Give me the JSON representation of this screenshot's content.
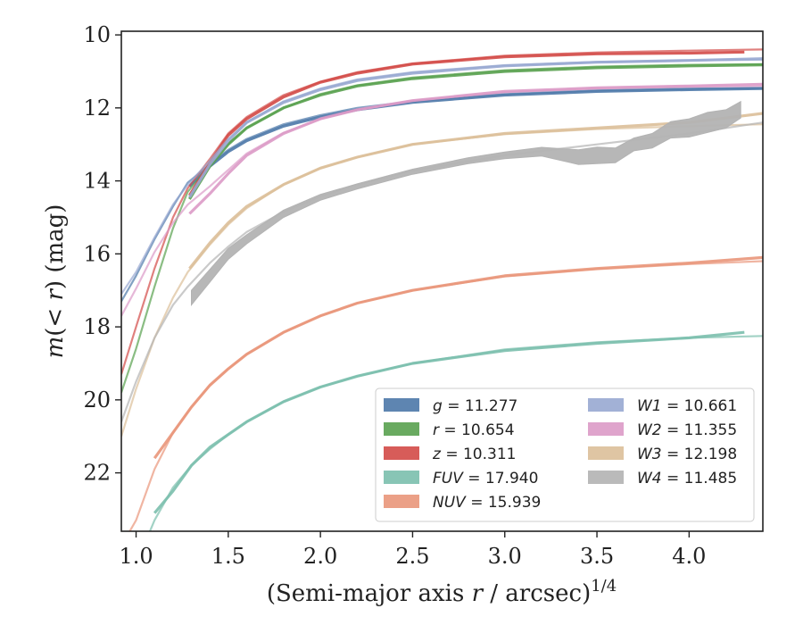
{
  "chart_data": {
    "type": "line",
    "title": "",
    "xlabel": "(Semi-major axis r / arcsec)",
    "xlabel_var": "r",
    "xlabel_prefix": "(Semi-major axis ",
    "xlabel_suffix": " / arcsec)",
    "xlabel_exponent": "1/4",
    "ylabel_prefix": "m(< ",
    "ylabel_var": "r",
    "ylabel_suffix": ") (mag)",
    "xlim": [
      0.92,
      4.4
    ],
    "ylim": [
      23.6,
      9.9
    ],
    "y_inverted": true,
    "xticks": [
      1.0,
      1.5,
      2.0,
      2.5,
      3.0,
      3.5,
      4.0
    ],
    "xtick_labels": [
      "1.0",
      "1.5",
      "2.0",
      "2.5",
      "3.0",
      "3.5",
      "4.0"
    ],
    "yticks": [
      10,
      12,
      14,
      16,
      18,
      20,
      22
    ],
    "ytick_labels": [
      "10",
      "12",
      "14",
      "16",
      "18",
      "20",
      "22"
    ],
    "legend_placement": "lower-right",
    "grid": false,
    "series": [
      {
        "name": "g = 11.277",
        "band": "g",
        "value": "11.277",
        "color": "#4c78a8",
        "data_x": [
          1.29,
          1.4,
          1.5,
          1.6,
          1.8,
          2.0,
          2.2,
          2.5,
          3.0,
          3.5,
          4.0,
          4.4
        ],
        "data_y": [
          14.15,
          13.6,
          13.2,
          12.9,
          12.5,
          12.25,
          12.05,
          11.85,
          11.65,
          11.55,
          11.5,
          11.47
        ],
        "model_x": [
          0.92,
          1.0,
          1.1,
          1.2,
          1.28,
          1.4,
          1.5,
          1.6,
          1.8,
          2.0,
          2.2,
          2.5,
          3.0,
          3.5,
          4.0,
          4.4
        ],
        "model_y": [
          17.3,
          16.6,
          15.6,
          14.7,
          14.05,
          13.55,
          13.15,
          12.85,
          12.45,
          12.2,
          12.0,
          11.82,
          11.62,
          11.52,
          11.47,
          11.45
        ]
      },
      {
        "name": "r = 10.654",
        "band": "r",
        "value": "10.654",
        "color": "#59a14f",
        "data_x": [
          1.29,
          1.4,
          1.5,
          1.6,
          1.8,
          2.0,
          2.2,
          2.5,
          3.0,
          3.5,
          4.0,
          4.4
        ],
        "data_y": [
          14.5,
          13.6,
          13.0,
          12.55,
          12.0,
          11.65,
          11.4,
          11.2,
          11.0,
          10.9,
          10.85,
          10.82
        ],
        "model_x": [
          0.92,
          1.0,
          1.1,
          1.2,
          1.28,
          1.4,
          1.5,
          1.6,
          1.8,
          2.0,
          2.2,
          2.5,
          3.0,
          3.5,
          4.0,
          4.4
        ],
        "model_y": [
          19.8,
          18.6,
          16.9,
          15.3,
          14.3,
          13.55,
          12.98,
          12.55,
          12.0,
          11.62,
          11.38,
          11.17,
          10.97,
          10.87,
          10.82,
          10.8
        ]
      },
      {
        "name": "z = 10.311",
        "band": "z",
        "value": "10.311",
        "color": "#d34a47",
        "data_x": [
          1.29,
          1.4,
          1.5,
          1.6,
          1.8,
          2.0,
          2.2,
          2.5,
          3.0,
          3.5,
          4.0,
          4.3
        ],
        "data_y": [
          14.4,
          13.5,
          12.75,
          12.3,
          11.7,
          11.3,
          11.05,
          10.8,
          10.6,
          10.52,
          10.5,
          10.47
        ],
        "model_x": [
          0.92,
          1.0,
          1.1,
          1.2,
          1.28,
          1.4,
          1.5,
          1.6,
          1.8,
          2.0,
          2.2,
          2.5,
          3.0,
          3.5,
          4.0,
          4.4
        ],
        "model_y": [
          19.3,
          18.0,
          16.4,
          15.0,
          14.2,
          13.4,
          12.7,
          12.25,
          11.65,
          11.28,
          11.02,
          10.78,
          10.57,
          10.48,
          10.43,
          10.4
        ]
      },
      {
        "name": "FUV = 17.940",
        "band": "FUV",
        "value": "17.940",
        "color": "#7bbfad",
        "data_x": [
          1.1,
          1.2,
          1.3,
          1.4,
          1.5,
          1.6,
          1.8,
          2.0,
          2.2,
          2.5,
          3.0,
          3.5,
          4.0,
          4.3
        ],
        "data_y": [
          23.1,
          22.5,
          21.8,
          21.3,
          20.95,
          20.6,
          20.05,
          19.65,
          19.35,
          19.0,
          18.65,
          18.45,
          18.3,
          18.15
        ],
        "model_x": [
          0.92,
          1.0,
          1.1,
          1.2,
          1.3,
          1.4,
          1.5,
          1.6,
          1.8,
          2.0,
          2.2,
          2.5,
          3.0,
          3.5,
          4.0,
          4.4
        ],
        "model_y": [
          25.2,
          24.5,
          23.3,
          22.4,
          21.8,
          21.35,
          20.95,
          20.6,
          20.05,
          19.65,
          19.35,
          19.0,
          18.62,
          18.42,
          18.3,
          18.25
        ]
      },
      {
        "name": "NUV = 15.939",
        "band": "NUV",
        "value": "15.939",
        "color": "#e9967a",
        "data_x": [
          1.1,
          1.2,
          1.3,
          1.4,
          1.5,
          1.6,
          1.8,
          2.0,
          2.2,
          2.5,
          3.0,
          3.5,
          4.0,
          4.4
        ],
        "data_y": [
          21.6,
          20.9,
          20.2,
          19.6,
          19.15,
          18.75,
          18.15,
          17.7,
          17.35,
          17.0,
          16.6,
          16.4,
          16.25,
          16.1
        ],
        "model_x": [
          0.92,
          1.0,
          1.1,
          1.2,
          1.3,
          1.4,
          1.5,
          1.6,
          1.8,
          2.0,
          2.2,
          2.5,
          3.0,
          3.5,
          4.0,
          4.4
        ],
        "model_y": [
          24.0,
          23.3,
          21.9,
          20.9,
          20.2,
          19.6,
          19.15,
          18.75,
          18.15,
          17.7,
          17.35,
          17.0,
          16.62,
          16.42,
          16.28,
          16.2
        ]
      },
      {
        "name": "W1 = 10.661",
        "band": "W1",
        "value": "10.661",
        "color": "#98a8d2",
        "data_x": [
          1.29,
          1.4,
          1.5,
          1.6,
          1.8,
          2.0,
          2.2,
          2.5,
          3.0,
          3.5,
          4.0,
          4.4
        ],
        "data_y": [
          14.45,
          13.55,
          12.9,
          12.4,
          11.85,
          11.5,
          11.25,
          11.05,
          10.85,
          10.75,
          10.7,
          10.65
        ],
        "model_x": [
          0.92,
          1.0,
          1.1,
          1.2,
          1.28,
          1.4,
          1.5,
          1.6,
          1.8,
          2.0,
          2.2,
          2.5,
          3.0,
          3.5,
          4.0,
          4.4
        ],
        "model_y": [
          17.1,
          16.5,
          15.55,
          14.65,
          14.1,
          13.45,
          12.85,
          12.4,
          11.82,
          11.47,
          11.22,
          11.02,
          10.83,
          10.74,
          10.7,
          10.68
        ]
      },
      {
        "name": "W2 = 11.355",
        "band": "W2",
        "value": "11.355",
        "color": "#dc9ac7",
        "data_x": [
          1.29,
          1.4,
          1.5,
          1.6,
          1.8,
          2.0,
          2.2,
          2.5,
          3.0,
          3.5,
          4.0,
          4.4
        ],
        "data_y": [
          14.9,
          14.35,
          13.8,
          13.3,
          12.7,
          12.3,
          12.05,
          11.8,
          11.55,
          11.45,
          11.4,
          11.35
        ],
        "model_x": [
          0.92,
          1.0,
          1.1,
          1.2,
          1.28,
          1.4,
          1.5,
          1.6,
          1.8,
          2.0,
          2.2,
          2.5,
          3.0,
          3.5,
          4.0,
          4.4
        ],
        "model_y": [
          17.7,
          16.95,
          15.95,
          15.15,
          14.65,
          14.15,
          13.7,
          13.25,
          12.68,
          12.3,
          12.05,
          11.8,
          11.57,
          11.47,
          11.42,
          11.4
        ]
      },
      {
        "name": "W3 = 12.198",
        "band": "W3",
        "value": "12.198",
        "color": "#dcbf99",
        "data_x": [
          1.29,
          1.4,
          1.5,
          1.6,
          1.8,
          2.0,
          2.2,
          2.5,
          3.0,
          3.5,
          4.0,
          4.4
        ],
        "data_y": [
          16.4,
          15.7,
          15.15,
          14.7,
          14.1,
          13.65,
          13.35,
          13.0,
          12.7,
          12.55,
          12.4,
          12.15
        ],
        "model_x": [
          0.92,
          1.0,
          1.1,
          1.2,
          1.28,
          1.4,
          1.5,
          1.6,
          1.8,
          2.0,
          2.2,
          2.5,
          3.0,
          3.5,
          4.0,
          4.4
        ],
        "model_y": [
          21.0,
          19.7,
          18.3,
          17.2,
          16.5,
          15.75,
          15.2,
          14.75,
          14.1,
          13.65,
          13.35,
          13.0,
          12.72,
          12.58,
          12.5,
          12.45
        ]
      },
      {
        "name": "W4 = 11.485",
        "band": "W4",
        "value": "11.485",
        "color": "#b3b3b3",
        "data_x": [
          1.3,
          1.4,
          1.5,
          1.6,
          1.8,
          2.0,
          2.2,
          2.5,
          2.8,
          3.0,
          3.2,
          3.4,
          3.5,
          3.6,
          3.7,
          3.8,
          3.9,
          4.0,
          4.1,
          4.2,
          4.28
        ],
        "data_y": [
          17.2,
          16.6,
          16.0,
          15.6,
          14.9,
          14.45,
          14.15,
          13.75,
          13.45,
          13.3,
          13.2,
          13.35,
          13.3,
          13.3,
          13.0,
          12.9,
          12.6,
          12.55,
          12.4,
          12.3,
          12.05
        ],
        "data_w": [
          0.4,
          0.35,
          0.3,
          0.25,
          0.2,
          0.16,
          0.14,
          0.14,
          0.16,
          0.18,
          0.24,
          0.4,
          0.45,
          0.4,
          0.35,
          0.4,
          0.45,
          0.5,
          0.55,
          0.5,
          0.45
        ],
        "model_x": [
          0.92,
          1.0,
          1.1,
          1.2,
          1.28,
          1.4,
          1.5,
          1.6,
          1.8,
          2.0,
          2.2,
          2.5,
          3.0,
          3.5,
          4.0,
          4.4
        ],
        "model_y": [
          20.6,
          19.5,
          18.3,
          17.4,
          16.9,
          16.25,
          15.8,
          15.4,
          14.85,
          14.42,
          14.1,
          13.72,
          13.3,
          13.0,
          12.7,
          12.4
        ]
      }
    ]
  }
}
